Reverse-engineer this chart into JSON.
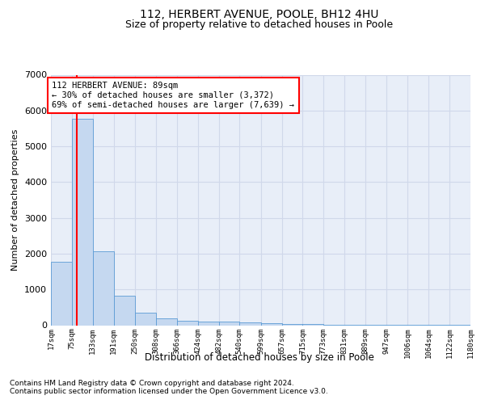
{
  "title": "112, HERBERT AVENUE, POOLE, BH12 4HU",
  "subtitle": "Size of property relative to detached houses in Poole",
  "xlabel": "Distribution of detached houses by size in Poole",
  "ylabel": "Number of detached properties",
  "bar_color": "#c5d8f0",
  "bar_edge_color": "#5b9bd5",
  "property_line_x": 89,
  "annotation_line1": "112 HERBERT AVENUE: 89sqm",
  "annotation_line2": "← 30% of detached houses are smaller (3,372)",
  "annotation_line3": "69% of semi-detached houses are larger (7,639) →",
  "annotation_box_color": "#cc0000",
  "footer1": "Contains HM Land Registry data © Crown copyright and database right 2024.",
  "footer2": "Contains public sector information licensed under the Open Government Licence v3.0.",
  "bin_edges": [
    17,
    75,
    133,
    191,
    250,
    308,
    366,
    424,
    482,
    540,
    599,
    657,
    715,
    773,
    831,
    889,
    947,
    1006,
    1064,
    1122,
    1180
  ],
  "bin_labels": [
    "17sqm",
    "75sqm",
    "133sqm",
    "191sqm",
    "250sqm",
    "308sqm",
    "366sqm",
    "424sqm",
    "482sqm",
    "540sqm",
    "599sqm",
    "657sqm",
    "715sqm",
    "773sqm",
    "831sqm",
    "889sqm",
    "947sqm",
    "1006sqm",
    "1064sqm",
    "1122sqm",
    "1180sqm"
  ],
  "bar_heights": [
    1780,
    5780,
    2060,
    820,
    340,
    185,
    120,
    100,
    95,
    90,
    55,
    40,
    25,
    15,
    10,
    8,
    5,
    4,
    3,
    2
  ],
  "ylim": [
    0,
    7000
  ],
  "yticks": [
    0,
    1000,
    2000,
    3000,
    4000,
    5000,
    6000,
    7000
  ],
  "grid_color": "#d0d8ea",
  "bg_color": "#e8eef8",
  "fig_bg_color": "#ffffff",
  "title_fontsize": 10,
  "subtitle_fontsize": 9,
  "ylabel_fontsize": 8,
  "xlabel_fontsize": 8.5,
  "ytick_fontsize": 8,
  "xtick_fontsize": 6.5,
  "footer_fontsize": 6.5,
  "annotation_fontsize": 7.5
}
